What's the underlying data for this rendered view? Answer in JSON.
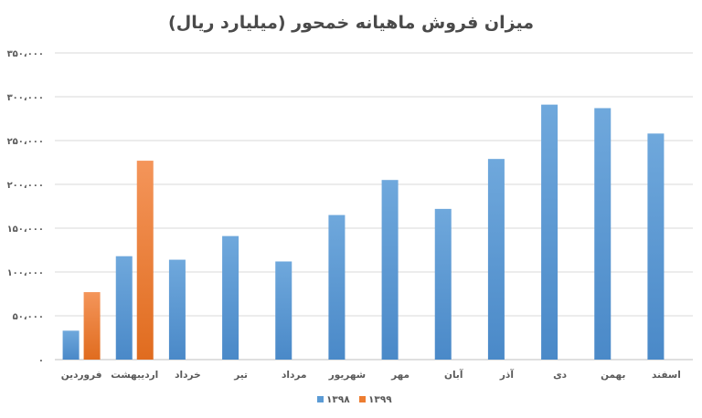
{
  "chart_data": {
    "type": "bar",
    "title": "میزان فروش ماهیانه خمحور (میلیارد ریال)",
    "categories": [
      "فروردین",
      "اردیبهشت",
      "خرداد",
      "تیر",
      "مرداد",
      "شهریور",
      "مهر",
      "آبان",
      "آذر",
      "دی",
      "بهمن",
      "اسفند"
    ],
    "series": [
      {
        "name": "۱۳۹۸",
        "color": "#5b9bd5",
        "values": [
          33000,
          118000,
          114000,
          141000,
          112000,
          165000,
          205000,
          172000,
          229000,
          291000,
          287000,
          258000
        ]
      },
      {
        "name": "۱۳۹۹",
        "color": "#ed7d31",
        "values": [
          77000,
          227000,
          null,
          null,
          null,
          null,
          null,
          null,
          null,
          null,
          null,
          null
        ]
      }
    ],
    "y_ticks": [
      "۰",
      "۵۰،۰۰۰",
      "۱۰۰،۰۰۰",
      "۱۵۰،۰۰۰",
      "۲۰۰،۰۰۰",
      "۲۵۰،۰۰۰",
      "۳۰۰،۰۰۰",
      "۳۵۰،۰۰۰"
    ],
    "ylim": [
      0,
      350000
    ],
    "grid": true,
    "legend_position": "bottom"
  }
}
